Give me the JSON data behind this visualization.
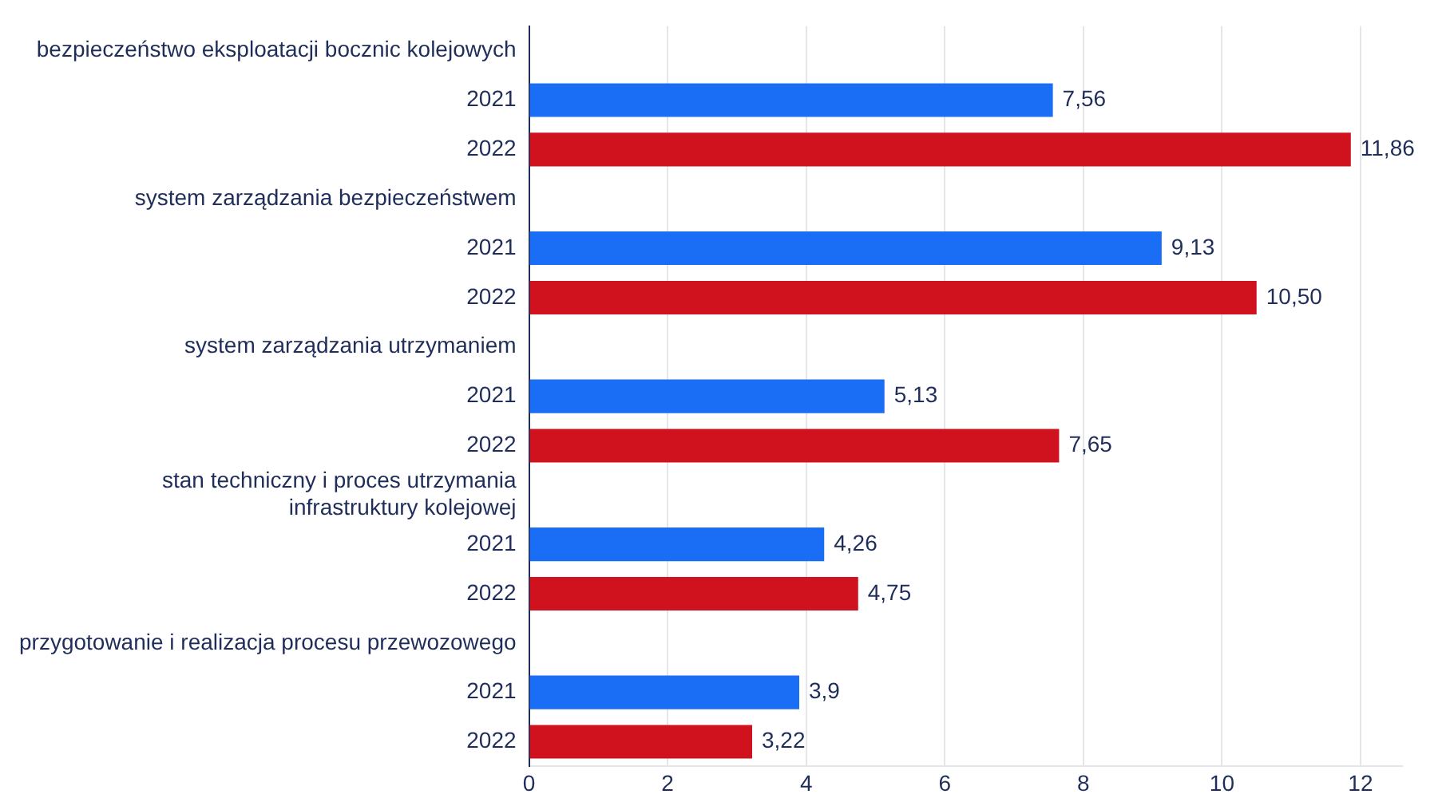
{
  "chart_data": {
    "type": "bar",
    "orientation": "horizontal",
    "categories": [
      "bezpieczeństwo eksploatacji bocznic kolejowych",
      "2021",
      "2022",
      "system zarządzania bezpieczeństwem",
      "2021",
      "2022",
      "system zarządzania utrzymaniem",
      "2021",
      "2022",
      "stan techniczny i proces utrzymania infrastruktury kolejowej",
      "2021",
      "2022",
      "przygotowanie i realizacja procesu przewozowego",
      "2021",
      "2022"
    ],
    "values": [
      null,
      7.56,
      11.86,
      null,
      9.13,
      10.5,
      null,
      5.13,
      7.65,
      null,
      4.26,
      4.75,
      null,
      3.9,
      3.22
    ],
    "colors": [
      "#1a6ef5",
      "#1a6ef5",
      "#d0121f",
      "#1a6ef5",
      "#1a6ef5",
      "#d0121f",
      "#1a6ef5",
      "#1a6ef5",
      "#d0121f",
      "#1a6ef5",
      "#1a6ef5",
      "#d0121f",
      "#1a6ef5",
      "#1a6ef5",
      "#d0121f"
    ],
    "value_labels": [
      null,
      "7,56",
      "11,86",
      null,
      "9,13",
      "10,50",
      null,
      "5,13",
      "7,65",
      null,
      "4,26",
      "4,75",
      null,
      "3,9",
      "3,22"
    ],
    "xlim": [
      0,
      12.6
    ],
    "xticks": [
      0,
      2,
      4,
      6,
      8,
      10,
      12
    ],
    "grid": "x",
    "legend": false
  }
}
